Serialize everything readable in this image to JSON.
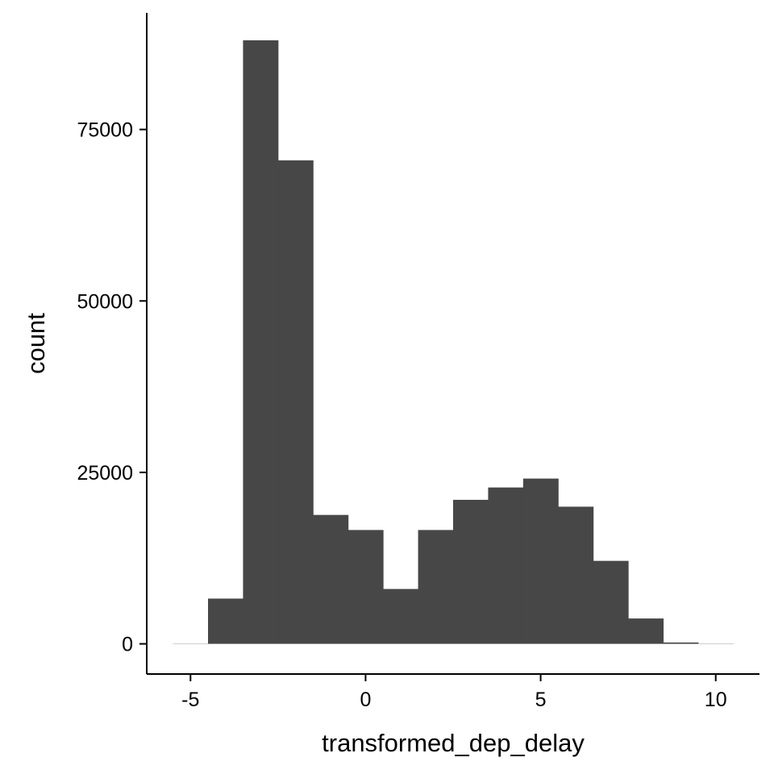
{
  "chart_data": {
    "type": "bar",
    "xlabel": "transformed_dep_delay",
    "ylabel": "count",
    "xlim": [
      -6.25,
      11.25
    ],
    "ylim": [
      -4400,
      92000
    ],
    "x_ticks": [
      -5,
      0,
      5,
      10
    ],
    "x_tick_labels": [
      "-5",
      "0",
      "5",
      "10"
    ],
    "y_ticks": [
      0,
      25000,
      50000,
      75000
    ],
    "y_tick_labels": [
      "0",
      "25000",
      "50000",
      "75000"
    ],
    "bin_width": 1,
    "bin_centers": [
      -5,
      -4,
      -3,
      -2,
      -1,
      0,
      1,
      2,
      3,
      4,
      5,
      6,
      7,
      8,
      9,
      10
    ],
    "counts": [
      0,
      6600,
      88000,
      70500,
      18800,
      16600,
      8000,
      16600,
      21000,
      22800,
      24100,
      20000,
      12100,
      3700,
      200,
      0
    ],
    "bar_color": "#474747",
    "empty_bin_color": "#cccccc",
    "grid": false,
    "legend": "none"
  }
}
